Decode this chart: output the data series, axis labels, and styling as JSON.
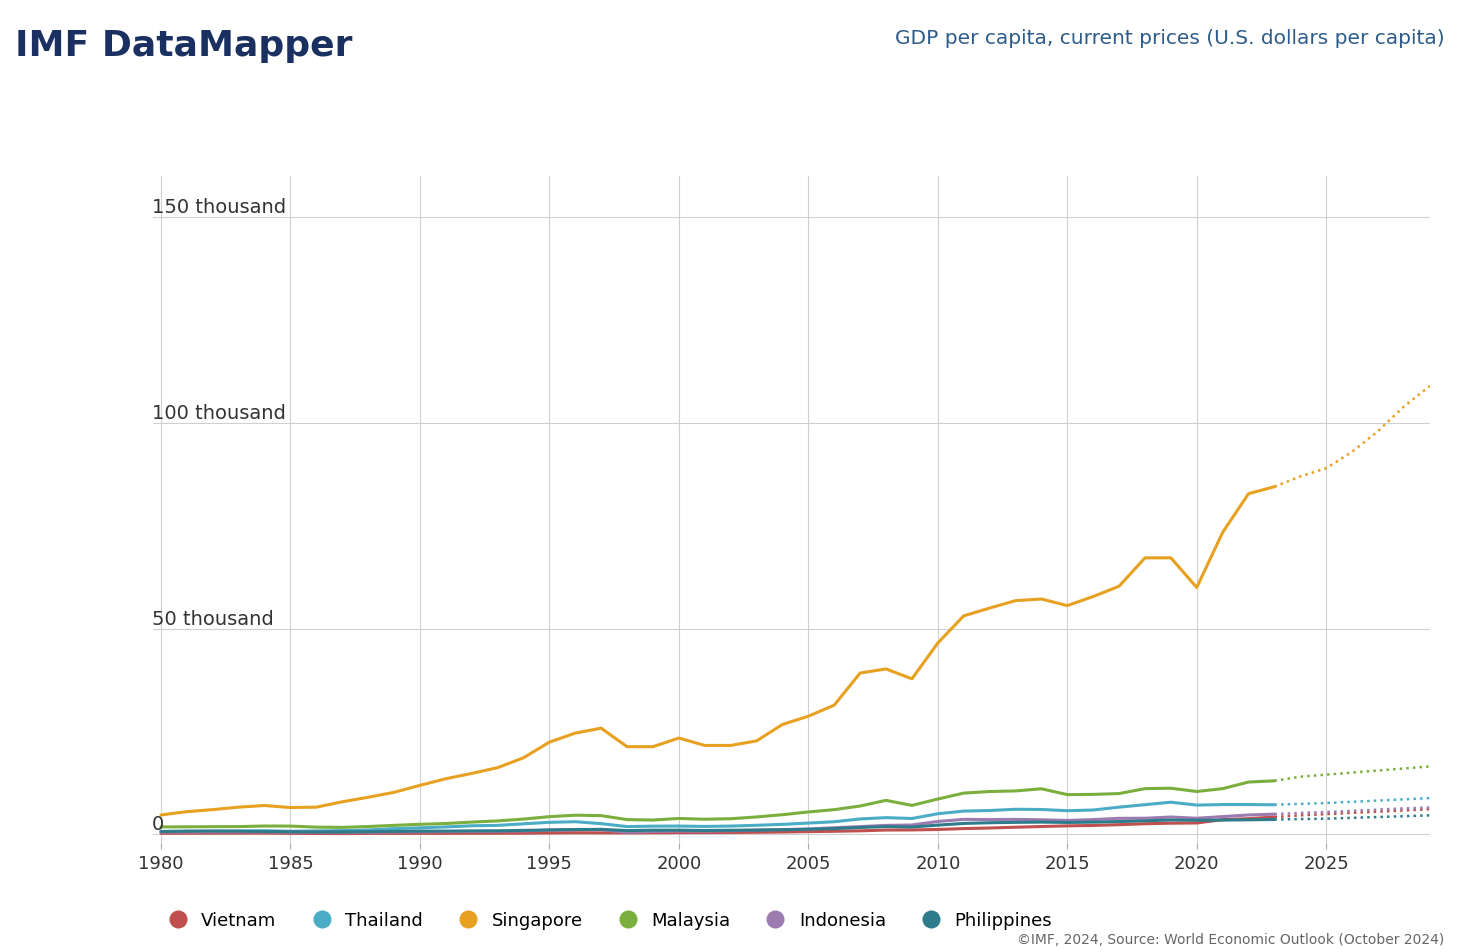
{
  "title_left": "IMF DataMapper",
  "title_right": "GDP per capita, current prices (U.S. dollars per capita)",
  "footnote": "©IMF, 2024, Source: World Economic Outlook (October 2024)",
  "yticks": [
    0,
    50000,
    100000,
    150000
  ],
  "ytick_labels": [
    "0",
    "50 thousand",
    "100 thousand",
    "150 thousand"
  ],
  "xlim_min": 1980,
  "xlim_max": 2029,
  "ylim_min": -2000,
  "ylim_max": 160000,
  "background_color": "#ffffff",
  "grid_color": "#d0d0d0",
  "title_left_color": "#1a3060",
  "title_right_color": "#2e5c8a",
  "countries": [
    "Vietnam",
    "Thailand",
    "Singapore",
    "Malaysia",
    "Indonesia",
    "Philippines"
  ],
  "colors": {
    "Vietnam": "#c0504d",
    "Thailand": "#4bacc6",
    "Singapore": "#e8a020",
    "Malaysia": "#7aaf3e",
    "Indonesia": "#9b7bb0",
    "Philippines": "#2e7b8c"
  },
  "forecast_start_year": 2023,
  "years": [
    1980,
    1981,
    1982,
    1983,
    1984,
    1985,
    1986,
    1987,
    1988,
    1989,
    1990,
    1991,
    1992,
    1993,
    1994,
    1995,
    1996,
    1997,
    1998,
    1999,
    2000,
    2001,
    2002,
    2003,
    2004,
    2005,
    2006,
    2007,
    2008,
    2009,
    2010,
    2011,
    2012,
    2013,
    2014,
    2015,
    2016,
    2017,
    2018,
    2019,
    2020,
    2021,
    2022,
    2023,
    2024,
    2025,
    2026,
    2027,
    2028,
    2029
  ],
  "data": {
    "Vietnam": [
      230,
      250,
      260,
      270,
      280,
      230,
      200,
      180,
      200,
      210,
      230,
      230,
      240,
      250,
      280,
      330,
      380,
      360,
      360,
      380,
      400,
      420,
      440,
      490,
      550,
      650,
      730,
      840,
      1030,
      1060,
      1170,
      1390,
      1530,
      1720,
      1890,
      2050,
      2150,
      2340,
      2560,
      2700,
      2750,
      3560,
      3800,
      4200,
      4600,
      4900,
      5200,
      5500,
      5800,
      6100
    ],
    "Thailand": [
      700,
      740,
      740,
      770,
      860,
      740,
      820,
      900,
      1050,
      1380,
      1570,
      1790,
      2070,
      2170,
      2540,
      2910,
      3060,
      2590,
      1870,
      1980,
      2000,
      1910,
      2000,
      2190,
      2420,
      2730,
      3050,
      3730,
      4050,
      3840,
      4990,
      5640,
      5780,
      6080,
      6030,
      5735,
      5900,
      6600,
      7200,
      7800,
      7100,
      7230,
      7230,
      7180,
      7400,
      7600,
      7900,
      8200,
      8500,
      8800
    ],
    "Singapore": [
      4700,
      5500,
      6000,
      6600,
      7000,
      6500,
      6600,
      7900,
      9000,
      10200,
      11900,
      13500,
      14800,
      16200,
      18600,
      22400,
      24600,
      25800,
      21300,
      21300,
      23400,
      21600,
      21600,
      22700,
      26700,
      28700,
      31400,
      39200,
      40200,
      37800,
      46500,
      53100,
      55000,
      56800,
      57200,
      55600,
      57800,
      60300,
      67200,
      67200,
      60000,
      73400,
      82800,
      84500,
      87000,
      89000,
      93000,
      98000,
      104000,
      109000
    ],
    "Malaysia": [
      1790,
      1820,
      1860,
      1870,
      2010,
      2000,
      1740,
      1680,
      1890,
      2170,
      2430,
      2620,
      2970,
      3250,
      3700,
      4290,
      4640,
      4540,
      3570,
      3470,
      3850,
      3660,
      3780,
      4220,
      4760,
      5430,
      5990,
      6880,
      8250,
      7020,
      8570,
      10010,
      10400,
      10540,
      11070,
      9640,
      9700,
      9900,
      11100,
      11200,
      10400,
      11100,
      12700,
      13000,
      14000,
      14500,
      15000,
      15500,
      16000,
      16500
    ],
    "Indonesia": [
      530,
      560,
      580,
      590,
      590,
      550,
      530,
      480,
      490,
      560,
      620,
      660,
      700,
      740,
      810,
      1040,
      1130,
      1110,
      500,
      690,
      790,
      740,
      870,
      1030,
      1140,
      1270,
      1600,
      1870,
      2170,
      2260,
      3120,
      3630,
      3590,
      3620,
      3530,
      3370,
      3570,
      3880,
      3900,
      4200,
      3900,
      4300,
      4700,
      4900,
      5200,
      5400,
      5700,
      6000,
      6300,
      6500
    ],
    "Philippines": [
      670,
      750,
      800,
      770,
      680,
      620,
      560,
      590,
      650,
      700,
      770,
      780,
      830,
      840,
      950,
      1050,
      1150,
      1200,
      900,
      1000,
      1000,
      930,
      980,
      1020,
      1100,
      1230,
      1380,
      1660,
      1880,
      1770,
      2230,
      2640,
      2810,
      2900,
      2960,
      2880,
      2950,
      3100,
      3270,
      3480,
      3400,
      3460,
      3520,
      3600,
      3700,
      3800,
      4000,
      4200,
      4400,
      4600
    ]
  }
}
